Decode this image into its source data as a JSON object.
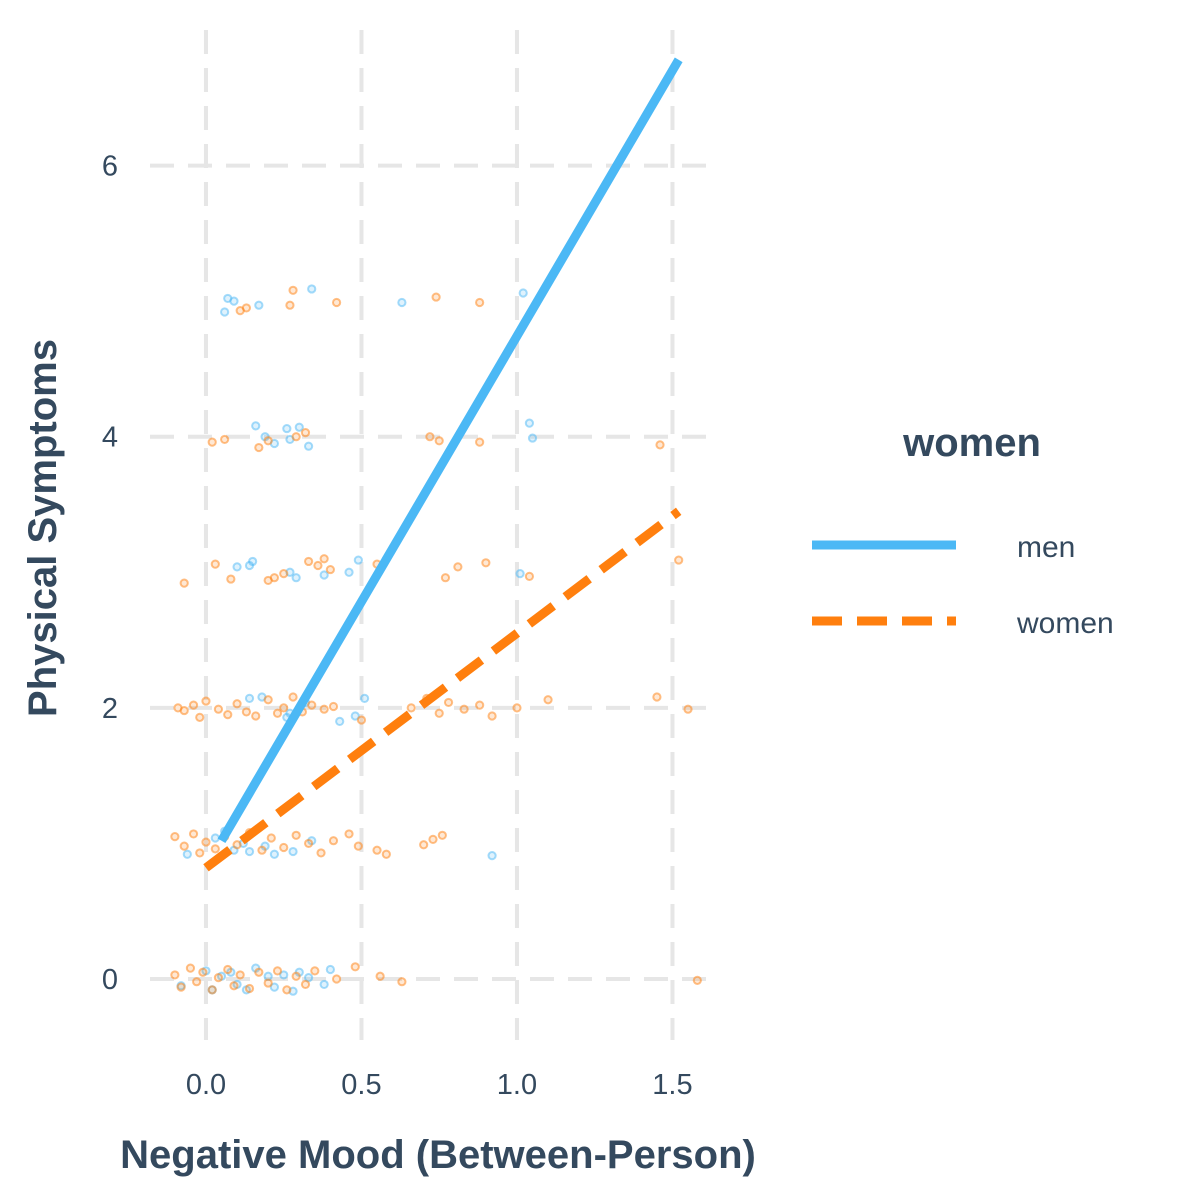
{
  "chart_data": {
    "type": "scatter",
    "xlabel": "Negative Mood (Between-Person)",
    "ylabel": "Physical Symptoms",
    "xlim": [
      -0.18,
      1.64
    ],
    "ylim": [
      -0.45,
      7.0
    ],
    "x_ticks": [
      0.0,
      0.5,
      1.0,
      1.5
    ],
    "x_tick_labels": [
      "0.0",
      "0.5",
      "1.0",
      "1.5"
    ],
    "y_ticks": [
      0,
      2,
      4,
      6
    ],
    "y_tick_labels": [
      "0",
      "2",
      "4",
      "6"
    ],
    "grid": true,
    "legend": {
      "title": "women",
      "placement": "right",
      "entries": [
        {
          "label": "men",
          "color": "#4bb8f5",
          "line": "solid"
        },
        {
          "label": "women",
          "color": "#ff7f0e",
          "line": "dashed"
        }
      ]
    },
    "series": [
      {
        "name": "men",
        "color": "#4bb8f5",
        "line_style": "solid",
        "fit_line": [
          [
            0.05,
            1.02
          ],
          [
            1.52,
            6.78
          ]
        ],
        "points": [
          [
            0.06,
            4.92
          ],
          [
            0.07,
            5.02
          ],
          [
            0.09,
            5.0
          ],
          [
            0.17,
            4.97
          ],
          [
            0.34,
            5.09
          ],
          [
            0.63,
            4.99
          ],
          [
            1.02,
            5.06
          ],
          [
            0.16,
            4.08
          ],
          [
            0.19,
            4.0
          ],
          [
            0.22,
            3.95
          ],
          [
            0.26,
            4.06
          ],
          [
            0.27,
            3.98
          ],
          [
            0.3,
            4.07
          ],
          [
            0.33,
            3.93
          ],
          [
            1.04,
            4.1
          ],
          [
            1.05,
            3.99
          ],
          [
            0.1,
            3.04
          ],
          [
            0.14,
            3.05
          ],
          [
            0.15,
            3.08
          ],
          [
            0.27,
            3.0
          ],
          [
            0.29,
            2.96
          ],
          [
            0.38,
            2.98
          ],
          [
            0.46,
            3.0
          ],
          [
            0.49,
            3.09
          ],
          [
            1.01,
            2.99
          ],
          [
            0.14,
            2.07
          ],
          [
            0.18,
            2.08
          ],
          [
            0.26,
            1.93
          ],
          [
            0.27,
            1.96
          ],
          [
            0.32,
            2.04
          ],
          [
            0.43,
            1.9
          ],
          [
            0.48,
            1.94
          ],
          [
            0.51,
            2.07
          ],
          [
            -0.06,
            0.92
          ],
          [
            0.03,
            1.04
          ],
          [
            0.06,
            1.09
          ],
          [
            0.09,
            0.95
          ],
          [
            0.12,
            1.0
          ],
          [
            0.14,
            0.94
          ],
          [
            0.19,
            0.98
          ],
          [
            0.22,
            0.92
          ],
          [
            0.28,
            0.94
          ],
          [
            0.34,
            1.02
          ],
          [
            0.92,
            0.91
          ],
          [
            -0.08,
            -0.05
          ],
          [
            0.0,
            0.06
          ],
          [
            0.02,
            -0.08
          ],
          [
            0.05,
            0.02
          ],
          [
            0.08,
            0.05
          ],
          [
            0.1,
            -0.04
          ],
          [
            0.13,
            -0.08
          ],
          [
            0.16,
            0.08
          ],
          [
            0.2,
            0.02
          ],
          [
            0.22,
            -0.06
          ],
          [
            0.25,
            0.03
          ],
          [
            0.28,
            -0.09
          ],
          [
            0.3,
            0.05
          ],
          [
            0.33,
            0.01
          ],
          [
            0.38,
            -0.04
          ],
          [
            0.4,
            0.07
          ]
        ]
      },
      {
        "name": "women",
        "color": "#ff7f0e",
        "line_style": "dashed",
        "fit_line": [
          [
            0.0,
            0.82
          ],
          [
            1.52,
            3.45
          ]
        ],
        "points": [
          [
            0.11,
            4.93
          ],
          [
            0.13,
            4.95
          ],
          [
            0.27,
            4.97
          ],
          [
            0.28,
            5.08
          ],
          [
            0.42,
            4.99
          ],
          [
            0.74,
            5.03
          ],
          [
            0.88,
            4.99
          ],
          [
            0.02,
            3.96
          ],
          [
            0.06,
            3.98
          ],
          [
            0.17,
            3.92
          ],
          [
            0.2,
            3.97
          ],
          [
            0.29,
            4.0
          ],
          [
            0.32,
            4.03
          ],
          [
            0.72,
            4.0
          ],
          [
            0.75,
            3.97
          ],
          [
            0.88,
            3.96
          ],
          [
            1.46,
            3.94
          ],
          [
            -0.07,
            2.92
          ],
          [
            0.03,
            3.06
          ],
          [
            0.08,
            2.95
          ],
          [
            0.2,
            2.94
          ],
          [
            0.22,
            2.96
          ],
          [
            0.25,
            2.99
          ],
          [
            0.33,
            3.08
          ],
          [
            0.36,
            3.05
          ],
          [
            0.38,
            3.1
          ],
          [
            0.4,
            3.02
          ],
          [
            0.55,
            3.06
          ],
          [
            0.77,
            2.96
          ],
          [
            0.81,
            3.04
          ],
          [
            0.9,
            3.07
          ],
          [
            1.04,
            2.97
          ],
          [
            1.52,
            3.09
          ],
          [
            -0.09,
            2.0
          ],
          [
            -0.07,
            1.98
          ],
          [
            -0.04,
            2.02
          ],
          [
            -0.02,
            1.93
          ],
          [
            0.0,
            2.05
          ],
          [
            0.04,
            1.99
          ],
          [
            0.07,
            1.95
          ],
          [
            0.1,
            2.03
          ],
          [
            0.13,
            1.97
          ],
          [
            0.16,
            1.94
          ],
          [
            0.2,
            2.06
          ],
          [
            0.23,
            1.96
          ],
          [
            0.25,
            2.0
          ],
          [
            0.28,
            2.08
          ],
          [
            0.31,
            1.97
          ],
          [
            0.34,
            2.02
          ],
          [
            0.38,
            1.99
          ],
          [
            0.41,
            2.01
          ],
          [
            0.5,
            1.91
          ],
          [
            0.66,
            2.0
          ],
          [
            0.71,
            2.07
          ],
          [
            0.75,
            1.96
          ],
          [
            0.78,
            2.04
          ],
          [
            0.83,
            1.99
          ],
          [
            0.88,
            2.02
          ],
          [
            0.92,
            1.94
          ],
          [
            1.0,
            2.0
          ],
          [
            1.1,
            2.06
          ],
          [
            1.45,
            2.08
          ],
          [
            1.55,
            1.99
          ],
          [
            -0.1,
            1.05
          ],
          [
            -0.07,
            0.98
          ],
          [
            -0.04,
            1.07
          ],
          [
            -0.02,
            0.93
          ],
          [
            0.0,
            1.01
          ],
          [
            0.03,
            0.96
          ],
          [
            0.06,
            1.05
          ],
          [
            0.1,
            0.99
          ],
          [
            0.14,
            1.08
          ],
          [
            0.18,
            0.95
          ],
          [
            0.21,
            1.04
          ],
          [
            0.25,
            0.97
          ],
          [
            0.29,
            1.06
          ],
          [
            0.33,
            1.0
          ],
          [
            0.37,
            0.93
          ],
          [
            0.41,
            1.02
          ],
          [
            0.46,
            1.07
          ],
          [
            0.49,
            0.98
          ],
          [
            0.55,
            0.95
          ],
          [
            0.58,
            0.92
          ],
          [
            0.7,
            0.99
          ],
          [
            0.73,
            1.03
          ],
          [
            0.76,
            1.06
          ],
          [
            -0.1,
            0.03
          ],
          [
            -0.08,
            -0.06
          ],
          [
            -0.05,
            0.08
          ],
          [
            -0.03,
            -0.02
          ],
          [
            -0.01,
            0.05
          ],
          [
            0.02,
            -0.08
          ],
          [
            0.04,
            0.01
          ],
          [
            0.07,
            0.07
          ],
          [
            0.09,
            -0.05
          ],
          [
            0.11,
            0.03
          ],
          [
            0.14,
            -0.07
          ],
          [
            0.17,
            0.05
          ],
          [
            0.2,
            -0.03
          ],
          [
            0.23,
            0.06
          ],
          [
            0.26,
            -0.08
          ],
          [
            0.29,
            0.02
          ],
          [
            0.32,
            -0.04
          ],
          [
            0.35,
            0.06
          ],
          [
            0.42,
            0.0
          ],
          [
            0.48,
            0.09
          ],
          [
            0.56,
            0.02
          ],
          [
            0.63,
            -0.02
          ],
          [
            1.58,
            -0.01
          ]
        ]
      }
    ]
  }
}
